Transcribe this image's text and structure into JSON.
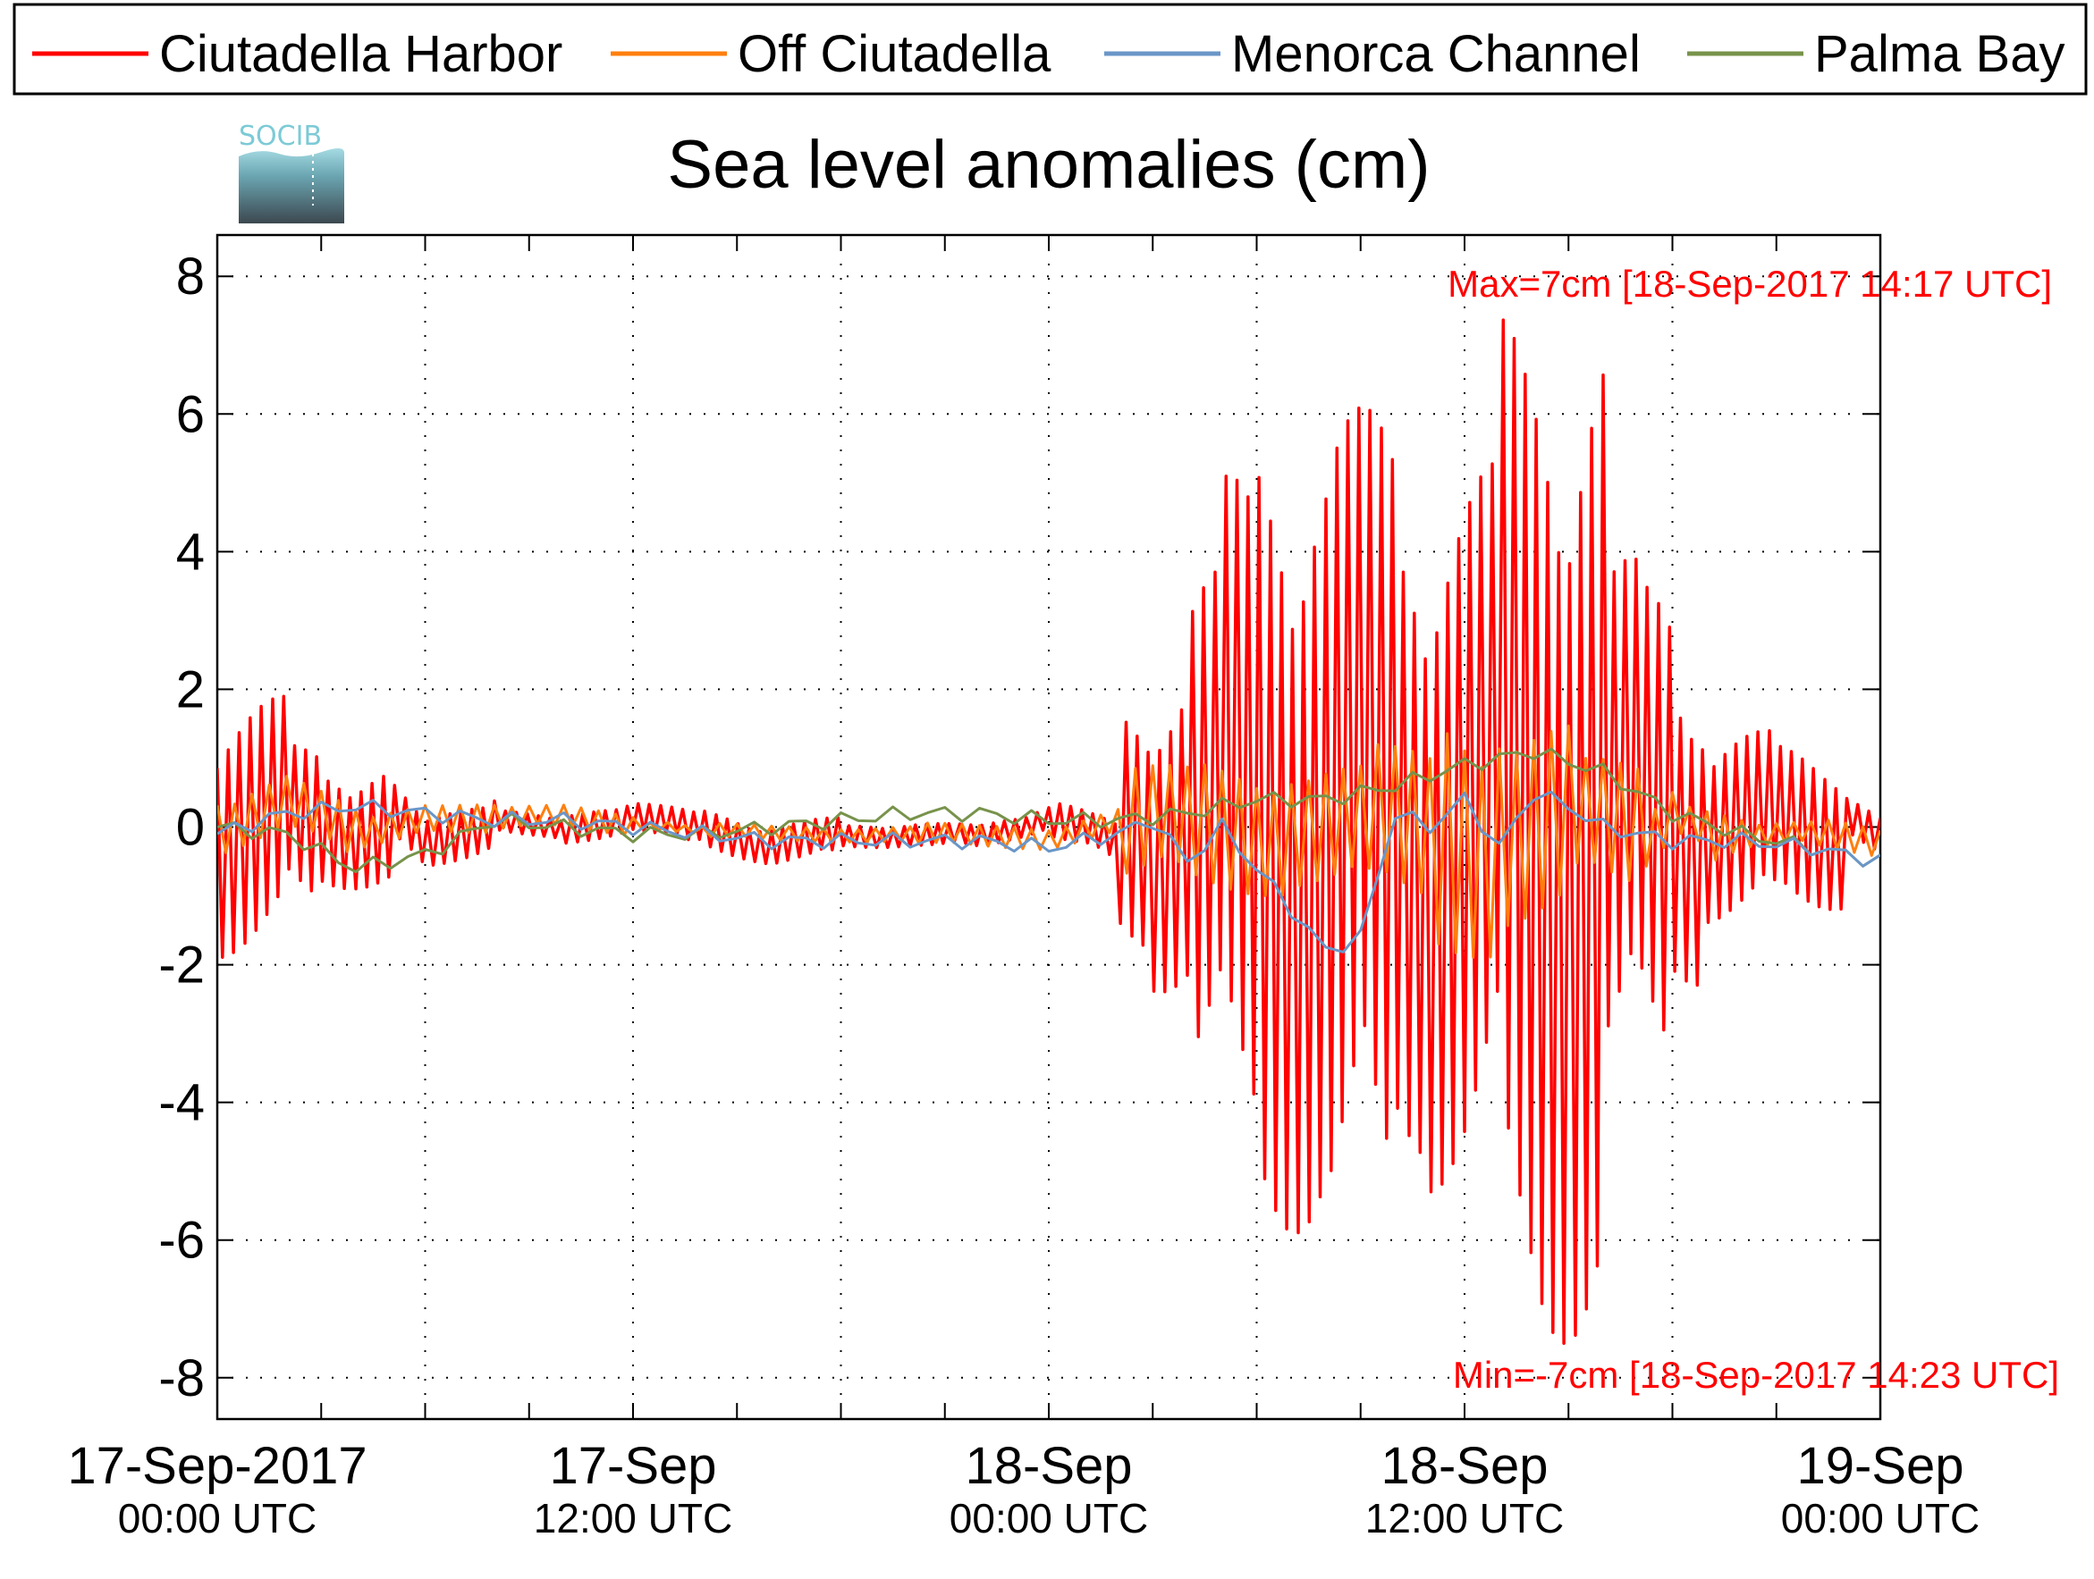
{
  "chart_data": {
    "type": "line",
    "title": "Sea level anomalies (cm)",
    "xlabel": "",
    "ylabel": "",
    "ylim": [
      -8.6,
      8.6
    ],
    "xlim": [
      "2017-09-17 00:00",
      "2017-09-19 00:00"
    ],
    "yticks": [
      8,
      6,
      4,
      2,
      0,
      -2,
      -4,
      -6,
      -8
    ],
    "ytick_labels": [
      "8",
      "6",
      "4",
      "2",
      "0",
      "-2",
      "-4",
      "-6",
      "-8"
    ],
    "xtick_labels": [
      {
        "date": "17-Sep-2017",
        "time": "00:00 UTC"
      },
      {
        "date": "17-Sep",
        "time": "12:00 UTC"
      },
      {
        "date": "18-Sep",
        "time": "00:00 UTC"
      },
      {
        "date": "18-Sep",
        "time": "12:00 UTC"
      },
      {
        "date": "19-Sep",
        "time": "00:00 UTC"
      }
    ],
    "xtick_dates": [
      "2017-09-17 00:00",
      "2017-09-17 12:00",
      "2017-09-18 00:00",
      "2017-09-18 12:00",
      "2017-09-19 00:00"
    ],
    "grid": true,
    "legend_position": "top",
    "annotations": {
      "max": "Max=7cm [18-Sep-2017 14:17 UTC]",
      "min": "Min=-7cm [18-Sep-2017 14:23 UTC]"
    },
    "logo_text": "SOCIB",
    "series": [
      {
        "name": "Ciutadella Harbor",
        "color": "#ff0000",
        "x": [
          "2017-09-17 00:00",
          "2017-09-17 01:00",
          "2017-09-17 02:00",
          "2017-09-17 03:00",
          "2017-09-17 04:00",
          "2017-09-17 05:00",
          "2017-09-17 06:00",
          "2017-09-17 08:00",
          "2017-09-17 10:00",
          "2017-09-17 12:00",
          "2017-09-17 14:00",
          "2017-09-17 16:00",
          "2017-09-17 18:00",
          "2017-09-17 20:00",
          "2017-09-17 22:00",
          "2017-09-18 00:00",
          "2017-09-18 02:00",
          "2017-09-18 03:00",
          "2017-09-18 04:00",
          "2017-09-18 05:00",
          "2017-09-18 06:00",
          "2017-09-18 07:00",
          "2017-09-18 08:00",
          "2017-09-18 09:00",
          "2017-09-18 10:00",
          "2017-09-18 11:00",
          "2017-09-18 12:00",
          "2017-09-18 13:00",
          "2017-09-18 14:00",
          "2017-09-18 15:00",
          "2017-09-18 16:00",
          "2017-09-18 17:00",
          "2017-09-18 18:00",
          "2017-09-18 19:00",
          "2017-09-18 20:00",
          "2017-09-18 21:00",
          "2017-09-18 22:00",
          "2017-09-18 23:00",
          "2017-09-19 00:00"
        ],
        "y": [
          -0.6,
          1.9,
          -1.2,
          0.3,
          -0.9,
          0.6,
          -0.7,
          0.3,
          -0.2,
          0.4,
          -0.1,
          -0.5,
          -0.3,
          -0.2,
          -0.3,
          0.3,
          -0.5,
          1.8,
          -2.4,
          3.8,
          -5.1,
          5.9,
          -5.6,
          6.1,
          -4.8,
          4.5,
          -5.3,
          4.2,
          7.4,
          -7.5,
          3.9,
          -3.6,
          -2.3,
          1.1,
          -1.4,
          0.8,
          -1.2,
          0.5,
          -0.3
        ]
      },
      {
        "name": "Off Ciutadella",
        "color": "#ff7f0e",
        "x": [
          "2017-09-17 00:00",
          "2017-09-17 02:00",
          "2017-09-17 04:00",
          "2017-09-17 06:00",
          "2017-09-17 08:00",
          "2017-09-17 10:00",
          "2017-09-17 12:00",
          "2017-09-17 14:00",
          "2017-09-17 16:00",
          "2017-09-17 18:00",
          "2017-09-17 20:00",
          "2017-09-17 22:00",
          "2017-09-18 00:00",
          "2017-09-18 02:00",
          "2017-09-18 03:00",
          "2017-09-18 04:00",
          "2017-09-18 05:00",
          "2017-09-18 06:00",
          "2017-09-18 07:00",
          "2017-09-18 08:00",
          "2017-09-18 09:00",
          "2017-09-18 10:00",
          "2017-09-18 11:00",
          "2017-09-18 12:00",
          "2017-09-18 13:00",
          "2017-09-18 14:00",
          "2017-09-18 15:00",
          "2017-09-18 16:00",
          "2017-09-18 17:00",
          "2017-09-18 18:00",
          "2017-09-18 20:00",
          "2017-09-18 22:00",
          "2017-09-19 00:00"
        ],
        "y": [
          0.0,
          0.7,
          -0.3,
          0.4,
          0.2,
          0.3,
          0.1,
          -0.1,
          -0.2,
          -0.2,
          -0.2,
          -0.3,
          -0.3,
          0.2,
          -0.9,
          0.9,
          -1.0,
          1.0,
          -0.9,
          0.9,
          -0.9,
          1.2,
          -0.8,
          1.9,
          -1.1,
          1.5,
          -0.9,
          1.0,
          -0.7,
          0.5,
          -0.3,
          -0.2,
          -0.4
        ]
      },
      {
        "name": "Menorca Channel",
        "color": "#6a96c8",
        "x": [
          "2017-09-17 00:00",
          "2017-09-17 02:00",
          "2017-09-17 04:00",
          "2017-09-17 06:00",
          "2017-09-17 08:00",
          "2017-09-17 10:00",
          "2017-09-17 12:00",
          "2017-09-17 14:00",
          "2017-09-17 16:00",
          "2017-09-17 18:00",
          "2017-09-17 20:00",
          "2017-09-17 22:00",
          "2017-09-18 00:00",
          "2017-09-18 02:00",
          "2017-09-18 03:00",
          "2017-09-18 04:00",
          "2017-09-18 05:00",
          "2017-09-18 06:00",
          "2017-09-18 07:00",
          "2017-09-18 08:00",
          "2017-09-18 09:00",
          "2017-09-18 10:00",
          "2017-09-18 11:00",
          "2017-09-18 12:00",
          "2017-09-18 13:00",
          "2017-09-18 14:00",
          "2017-09-18 15:00",
          "2017-09-18 16:00",
          "2017-09-18 18:00",
          "2017-09-18 20:00",
          "2017-09-18 22:00",
          "2017-09-19 00:00"
        ],
        "y": [
          -0.1,
          0.2,
          0.3,
          0.2,
          0.1,
          0.1,
          0.0,
          -0.1,
          -0.2,
          -0.2,
          -0.2,
          -0.2,
          -0.3,
          -0.1,
          0.1,
          -0.5,
          0.0,
          -0.6,
          -1.2,
          -1.8,
          -1.6,
          0.2,
          0.0,
          0.4,
          -0.3,
          0.5,
          0.3,
          0.0,
          -0.2,
          -0.2,
          -0.3,
          -0.5
        ]
      },
      {
        "name": "Palma Bay",
        "color": "#77934b",
        "x": [
          "2017-09-17 00:00",
          "2017-09-17 02:00",
          "2017-09-17 04:00",
          "2017-09-17 06:00",
          "2017-09-17 08:00",
          "2017-09-17 10:00",
          "2017-09-17 12:00",
          "2017-09-17 14:00",
          "2017-09-17 16:00",
          "2017-09-17 18:00",
          "2017-09-17 20:00",
          "2017-09-17 22:00",
          "2017-09-18 00:00",
          "2017-09-18 02:00",
          "2017-09-18 04:00",
          "2017-09-18 06:00",
          "2017-09-18 08:00",
          "2017-09-18 10:00",
          "2017-09-18 12:00",
          "2017-09-18 14:00",
          "2017-09-18 16:00",
          "2017-09-18 18:00",
          "2017-09-18 20:00",
          "2017-09-18 22:00",
          "2017-09-19 00:00"
        ],
        "y": [
          0.0,
          -0.1,
          -0.6,
          -0.4,
          0.1,
          0.0,
          -0.1,
          -0.1,
          0.0,
          0.1,
          0.2,
          0.2,
          0.1,
          0.1,
          0.2,
          0.4,
          0.4,
          0.6,
          0.9,
          1.1,
          0.8,
          0.2,
          -0.1,
          -0.3,
          -0.5
        ]
      }
    ]
  }
}
